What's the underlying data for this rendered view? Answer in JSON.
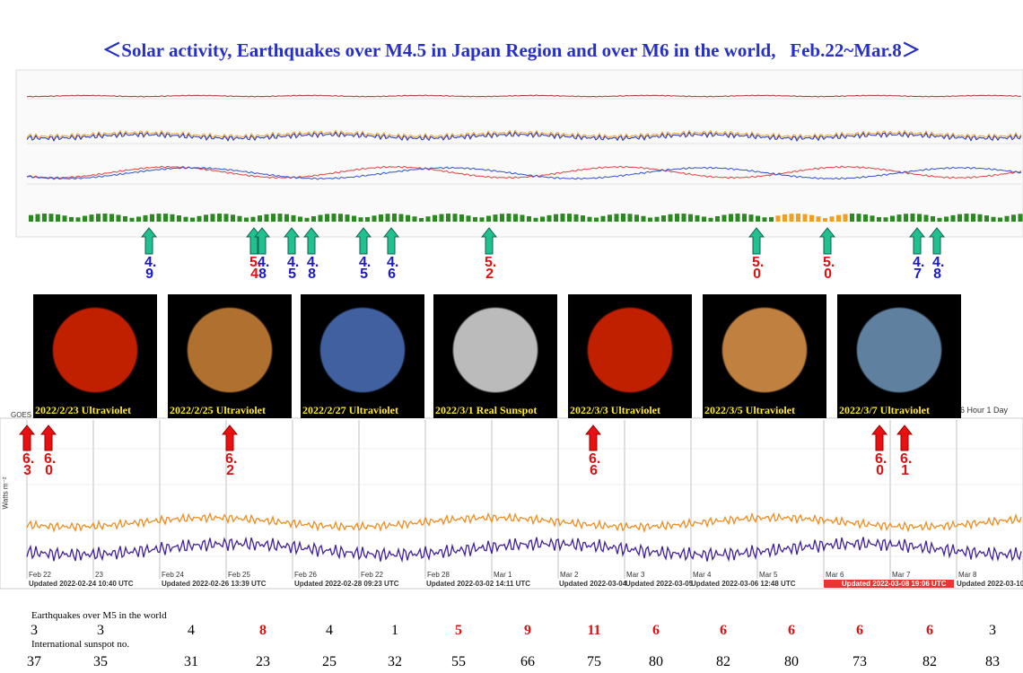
{
  "title": "＜Solar activity, Earthquakes over M4.5 in Japan Region and over M6 in the world,   Feb.22~Mar.8＞",
  "japan_quakes": [
    "4.9",
    "5.4",
    "4.8",
    "4.5",
    "4.8",
    "4.5",
    "4.6",
    "5.2",
    "5.0",
    "5.0",
    "4.7",
    "4.8"
  ],
  "japan_quake_colors": [
    "#1a1acc",
    "#e01010",
    "#1a1acc",
    "#1a1acc",
    "#1a1acc",
    "#1a1acc",
    "#1a1acc",
    "#e01010",
    "#e01010",
    "#e01010",
    "#1a1acc",
    "#1a1acc"
  ],
  "solar_images": [
    "2022/2/23 Ultraviolet",
    "2022/2/25 Ultraviolet",
    "2022/2/27 Ultraviolet",
    "2022/3/1 Real Sunspot",
    "2022/3/3 Ultraviolet",
    "2022/3/5 Ultraviolet",
    "2022/3/7 Ultraviolet"
  ],
  "world_quakes": [
    "6.3",
    "6.0",
    "6.2",
    "6.6",
    "6.0",
    "6.1"
  ],
  "goes_panel": {
    "instrument": "GOES",
    "y_label": "Watts m⁻²",
    "timespan": "6 Hour 1 Day",
    "dates": [
      "Feb 22",
      "23",
      "Feb 24",
      "Feb 25",
      "Feb 26",
      "Feb 22",
      "Feb 28",
      "Mar 1",
      "Mar 2",
      "Mar 3",
      "Mar 4",
      "Mar 5",
      "Mar 6",
      "Mar 7",
      "Mar 8"
    ],
    "updated": [
      "Updated 2022-02-24 10:40 UTC",
      "Updated 2022-02-26 13:39 UTC",
      "Updated 2022-02-28 09:23 UTC",
      "Updated 2022-03-02 14:11 UTC",
      "Updated 2022-03-04",
      "Updated 2022-03-05",
      "Updated 2022-03-06 12:48 UTC",
      "Updated 2022-03-08 19:06 UTC",
      "Updated 2022-03-10"
    ]
  },
  "bottom": {
    "earthquake_label": "Earthquakes over M5 in the world",
    "earthquake_counts": [
      "3",
      "3",
      "4",
      "8",
      "4",
      "1",
      "5",
      "9",
      "11",
      "6",
      "6",
      "6",
      "6",
      "6",
      "3"
    ],
    "earthquake_colors": [
      "#000",
      "#000",
      "#000",
      "#e01010",
      "#000",
      "#000",
      "#e01010",
      "#e01010",
      "#e01010",
      "#e01010",
      "#e01010",
      "#e01010",
      "#e01010",
      "#e01010",
      "#000"
    ],
    "sunspot_label": "International sunspot no.",
    "sunspot_numbers": [
      "37",
      "35",
      "31",
      "23",
      "25",
      "32",
      "55",
      "66",
      "75",
      "80",
      "82",
      "80",
      "73",
      "82",
      "83"
    ]
  }
}
